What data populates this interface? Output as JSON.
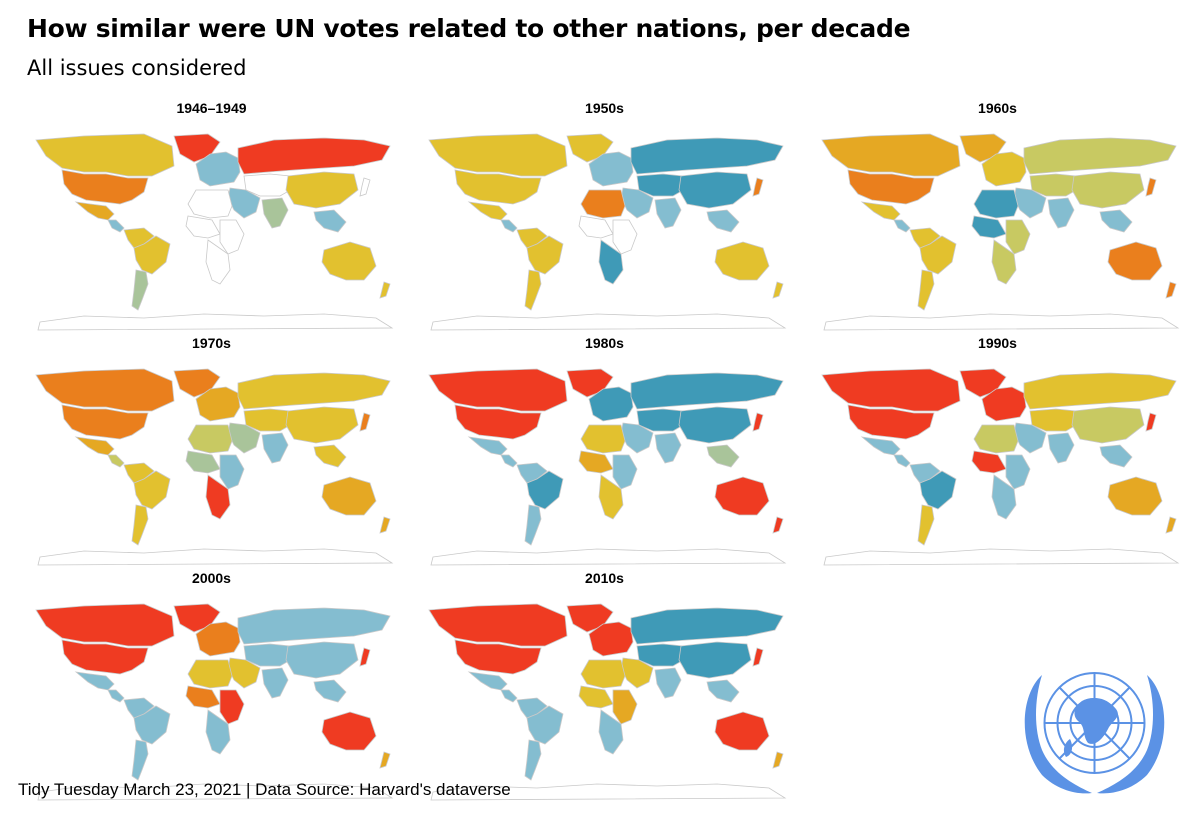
{
  "title": "How similar were UN votes related to other nations, per decade",
  "subtitle": "All issues considered",
  "caption": "Tidy Tuesday March 23, 2021 | Data Source: Harvard's dataverse",
  "colors": {
    "red": "#ef3b22",
    "orange": "#ea7f1d",
    "amber": "#e5a823",
    "gold": "#e2c12f",
    "khaki": "#c8c962",
    "sage": "#a9c49a",
    "lightblue": "#84bdd0",
    "teal": "#3f9ab7",
    "nodata": "#ffffff",
    "border": "#c9c9c9",
    "un_blue": "#5b92e5"
  },
  "panels": [
    {
      "label": "1946–1949",
      "fill": {
        "canada": "gold",
        "usa": "orange",
        "greenland": "red",
        "mexico": "amber",
        "central_america": "lightblue",
        "south_america": "gold",
        "brazil": "gold",
        "argentina": "sage",
        "europe": "lightblue",
        "russia": "red",
        "north_africa": "nodata",
        "west_africa": "nodata",
        "east_africa": "nodata",
        "southern_africa": "nodata",
        "middle_east": "lightblue",
        "central_asia": "nodata",
        "india": "sage",
        "china": "gold",
        "southeast_asia": "lightblue",
        "japan": "nodata",
        "australia": "gold",
        "new_zealand": "gold"
      }
    },
    {
      "label": "1950s",
      "fill": {
        "canada": "gold",
        "usa": "gold",
        "greenland": "gold",
        "mexico": "gold",
        "central_america": "lightblue",
        "south_america": "gold",
        "brazil": "gold",
        "argentina": "gold",
        "europe": "lightblue",
        "russia": "teal",
        "north_africa": "orange",
        "west_africa": "nodata",
        "east_africa": "nodata",
        "southern_africa": "teal",
        "middle_east": "lightblue",
        "central_asia": "teal",
        "india": "lightblue",
        "china": "teal",
        "southeast_asia": "lightblue",
        "japan": "orange",
        "australia": "gold",
        "new_zealand": "gold"
      }
    },
    {
      "label": "1960s",
      "fill": {
        "canada": "amber",
        "usa": "orange",
        "greenland": "amber",
        "mexico": "gold",
        "central_america": "lightblue",
        "south_america": "gold",
        "brazil": "gold",
        "argentina": "gold",
        "europe": "gold",
        "russia": "khaki",
        "north_africa": "teal",
        "west_africa": "teal",
        "east_africa": "khaki",
        "southern_africa": "khaki",
        "middle_east": "lightblue",
        "central_asia": "khaki",
        "india": "lightblue",
        "china": "khaki",
        "southeast_asia": "lightblue",
        "japan": "orange",
        "australia": "orange",
        "new_zealand": "orange"
      }
    },
    {
      "label": "1970s",
      "fill": {
        "canada": "orange",
        "usa": "orange",
        "greenland": "orange",
        "mexico": "amber",
        "central_america": "khaki",
        "south_america": "gold",
        "brazil": "gold",
        "argentina": "gold",
        "europe": "amber",
        "russia": "gold",
        "north_africa": "khaki",
        "west_africa": "sage",
        "east_africa": "lightblue",
        "southern_africa": "red",
        "middle_east": "sage",
        "central_asia": "gold",
        "india": "lightblue",
        "china": "gold",
        "southeast_asia": "gold",
        "japan": "orange",
        "australia": "amber",
        "new_zealand": "amber"
      }
    },
    {
      "label": "1980s",
      "fill": {
        "canada": "red",
        "usa": "red",
        "greenland": "red",
        "mexico": "lightblue",
        "central_america": "lightblue",
        "south_america": "lightblue",
        "brazil": "teal",
        "argentina": "lightblue",
        "europe": "teal",
        "russia": "teal",
        "north_africa": "gold",
        "west_africa": "amber",
        "east_africa": "lightblue",
        "southern_africa": "gold",
        "middle_east": "lightblue",
        "central_asia": "teal",
        "india": "lightblue",
        "china": "teal",
        "southeast_asia": "sage",
        "japan": "red",
        "australia": "red",
        "new_zealand": "red"
      }
    },
    {
      "label": "1990s",
      "fill": {
        "canada": "red",
        "usa": "red",
        "greenland": "red",
        "mexico": "lightblue",
        "central_america": "lightblue",
        "south_america": "lightblue",
        "brazil": "teal",
        "argentina": "gold",
        "europe": "red",
        "russia": "gold",
        "north_africa": "khaki",
        "west_africa": "red",
        "east_africa": "lightblue",
        "southern_africa": "lightblue",
        "middle_east": "lightblue",
        "central_asia": "gold",
        "india": "lightblue",
        "china": "khaki",
        "southeast_asia": "lightblue",
        "japan": "red",
        "australia": "amber",
        "new_zealand": "amber"
      }
    },
    {
      "label": "2000s",
      "fill": {
        "canada": "red",
        "usa": "red",
        "greenland": "red",
        "mexico": "lightblue",
        "central_america": "lightblue",
        "south_america": "lightblue",
        "brazil": "lightblue",
        "argentina": "lightblue",
        "europe": "orange",
        "russia": "lightblue",
        "north_africa": "gold",
        "west_africa": "orange",
        "east_africa": "red",
        "southern_africa": "lightblue",
        "middle_east": "gold",
        "central_asia": "lightblue",
        "india": "lightblue",
        "china": "lightblue",
        "southeast_asia": "lightblue",
        "japan": "red",
        "australia": "red",
        "new_zealand": "amber"
      }
    },
    {
      "label": "2010s",
      "fill": {
        "canada": "red",
        "usa": "red",
        "greenland": "red",
        "mexico": "lightblue",
        "central_america": "lightblue",
        "south_america": "lightblue",
        "brazil": "lightblue",
        "argentina": "lightblue",
        "europe": "red",
        "russia": "teal",
        "north_africa": "gold",
        "west_africa": "gold",
        "east_africa": "amber",
        "southern_africa": "lightblue",
        "middle_east": "gold",
        "central_asia": "teal",
        "india": "lightblue",
        "china": "teal",
        "southeast_asia": "lightblue",
        "japan": "red",
        "australia": "red",
        "new_zealand": "amber"
      }
    }
  ]
}
